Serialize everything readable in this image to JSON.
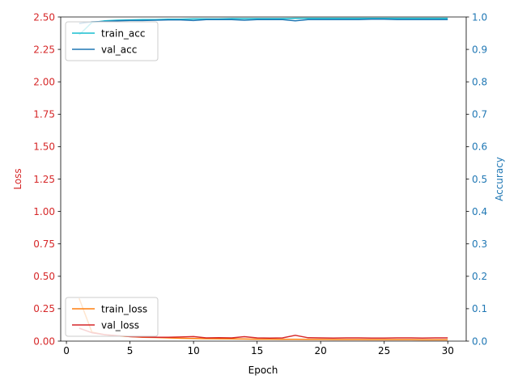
{
  "chart_data": {
    "type": "line",
    "title": "",
    "xlabel": "Epoch",
    "xlim": [
      -0.45,
      31.45
    ],
    "xticks": [
      0,
      5,
      10,
      15,
      20,
      25,
      30
    ],
    "grid": false,
    "left_axis": {
      "label": "Loss",
      "color": "#d62728",
      "lim": [
        0,
        2.5
      ],
      "ticks": [
        "0.00",
        "0.25",
        "0.50",
        "0.75",
        "1.00",
        "1.25",
        "1.50",
        "1.75",
        "2.00",
        "2.25",
        "2.50"
      ]
    },
    "right_axis": {
      "label": "Accuracy",
      "color": "#1f77b4",
      "lim": [
        0,
        1
      ],
      "ticks": [
        "0.0",
        "0.1",
        "0.2",
        "0.3",
        "0.4",
        "0.5",
        "0.6",
        "0.7",
        "0.8",
        "0.9",
        "1.0"
      ]
    },
    "x": [
      1,
      2,
      3,
      4,
      5,
      6,
      7,
      8,
      9,
      10,
      11,
      12,
      13,
      14,
      15,
      16,
      17,
      18,
      19,
      20,
      21,
      22,
      23,
      24,
      25,
      26,
      27,
      28,
      29,
      30
    ],
    "series": [
      {
        "name": "train_acc",
        "axis": "right",
        "color": "#17becf",
        "legend": "upper-left",
        "values": [
          0.945,
          0.983,
          0.988,
          0.99,
          0.991,
          0.992,
          0.992,
          0.993,
          0.993,
          0.994,
          0.994,
          0.994,
          0.995,
          0.995,
          0.995,
          0.995,
          0.995,
          0.996,
          0.996,
          0.996,
          0.996,
          0.996,
          0.996,
          0.996,
          0.996,
          0.996,
          0.996,
          0.996,
          0.996,
          0.996
        ]
      },
      {
        "name": "val_acc",
        "axis": "right",
        "color": "#1f77b4",
        "legend": "upper-left",
        "values": [
          0.98,
          0.985,
          0.986,
          0.988,
          0.989,
          0.989,
          0.99,
          0.991,
          0.991,
          0.989,
          0.992,
          0.992,
          0.992,
          0.99,
          0.992,
          0.992,
          0.992,
          0.988,
          0.992,
          0.992,
          0.992,
          0.992,
          0.992,
          0.993,
          0.993,
          0.992,
          0.992,
          0.992,
          0.992,
          0.992
        ]
      },
      {
        "name": "train_loss",
        "axis": "left",
        "color": "#ff7f0e",
        "legend": "lower-left",
        "values": [
          0.33,
          0.07,
          0.05,
          0.04,
          0.035,
          0.03,
          0.028,
          0.025,
          0.022,
          0.02,
          0.019,
          0.018,
          0.017,
          0.016,
          0.015,
          0.015,
          0.014,
          0.014,
          0.013,
          0.013,
          0.012,
          0.012,
          0.012,
          0.011,
          0.011,
          0.011,
          0.011,
          0.01,
          0.01,
          0.01
        ]
      },
      {
        "name": "val_loss",
        "axis": "left",
        "color": "#d62728",
        "legend": "lower-left",
        "values": [
          0.1,
          0.065,
          0.05,
          0.042,
          0.035,
          0.032,
          0.03,
          0.03,
          0.032,
          0.035,
          0.025,
          0.026,
          0.025,
          0.034,
          0.025,
          0.024,
          0.025,
          0.045,
          0.026,
          0.025,
          0.024,
          0.025,
          0.025,
          0.024,
          0.024,
          0.025,
          0.025,
          0.024,
          0.025,
          0.025
        ]
      }
    ]
  }
}
